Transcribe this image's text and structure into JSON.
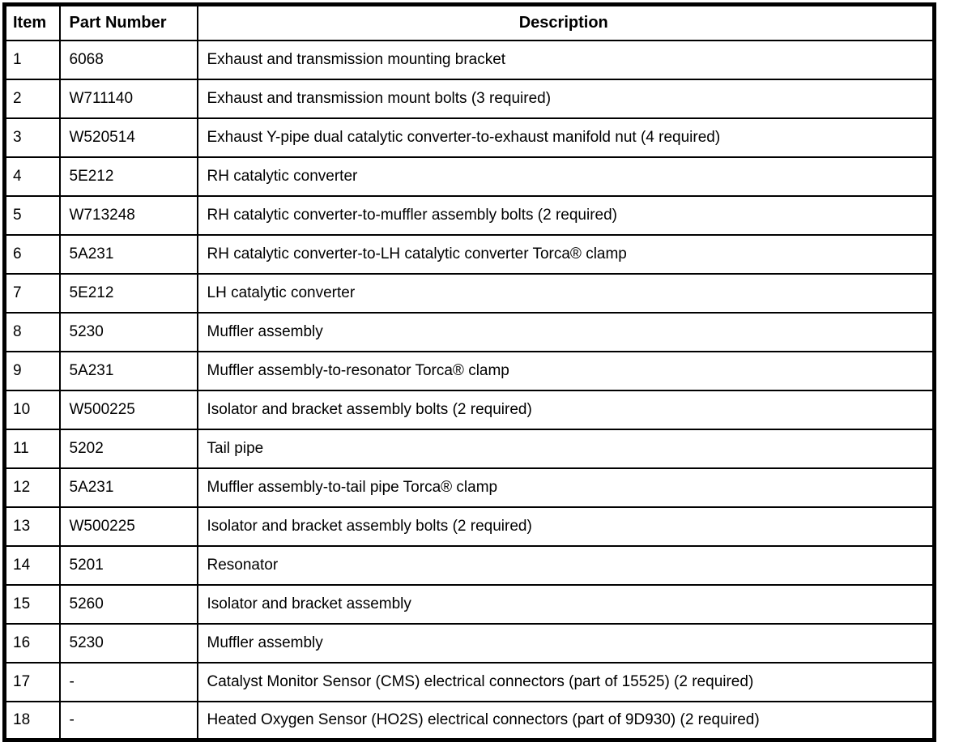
{
  "colors": {
    "border": "#000000",
    "background": "#ffffff",
    "text": "#000000"
  },
  "table": {
    "headers": {
      "item": "Item",
      "part_number": "Part Number",
      "description": "Description"
    },
    "rows": [
      {
        "item": "1",
        "part_number": "6068",
        "description": "Exhaust and transmission mounting bracket"
      },
      {
        "item": "2",
        "part_number": "W711140",
        "description": "Exhaust and transmission mount bolts (3 required)"
      },
      {
        "item": "3",
        "part_number": "W520514",
        "description": "Exhaust Y-pipe dual catalytic converter-to-exhaust manifold nut (4 required)"
      },
      {
        "item": "4",
        "part_number": "5E212",
        "description": "RH catalytic converter"
      },
      {
        "item": "5",
        "part_number": "W713248",
        "description": "RH catalytic converter-to-muffler assembly bolts (2 required)"
      },
      {
        "item": "6",
        "part_number": "5A231",
        "description": "RH catalytic converter-to-LH catalytic converter Torca® clamp"
      },
      {
        "item": "7",
        "part_number": "5E212",
        "description": "LH catalytic converter"
      },
      {
        "item": "8",
        "part_number": "5230",
        "description": "Muffler assembly"
      },
      {
        "item": "9",
        "part_number": "5A231",
        "description": "Muffler assembly-to-resonator Torca® clamp"
      },
      {
        "item": "10",
        "part_number": "W500225",
        "description": "Isolator and bracket assembly bolts (2 required)"
      },
      {
        "item": "11",
        "part_number": "5202",
        "description": "Tail pipe"
      },
      {
        "item": "12",
        "part_number": "5A231",
        "description": "Muffler assembly-to-tail pipe Torca® clamp"
      },
      {
        "item": "13",
        "part_number": "W500225",
        "description": "Isolator and bracket assembly bolts (2 required)"
      },
      {
        "item": "14",
        "part_number": "5201",
        "description": "Resonator"
      },
      {
        "item": "15",
        "part_number": "5260",
        "description": "Isolator and bracket assembly"
      },
      {
        "item": "16",
        "part_number": "5230",
        "description": "Muffler assembly"
      },
      {
        "item": "17",
        "part_number": "-",
        "description": "Catalyst Monitor Sensor (CMS) electrical connectors (part of 15525) (2 required)"
      },
      {
        "item": "18",
        "part_number": "-",
        "description": "Heated Oxygen Sensor (HO2S) electrical connectors (part of 9D930) (2 required)"
      }
    ]
  }
}
